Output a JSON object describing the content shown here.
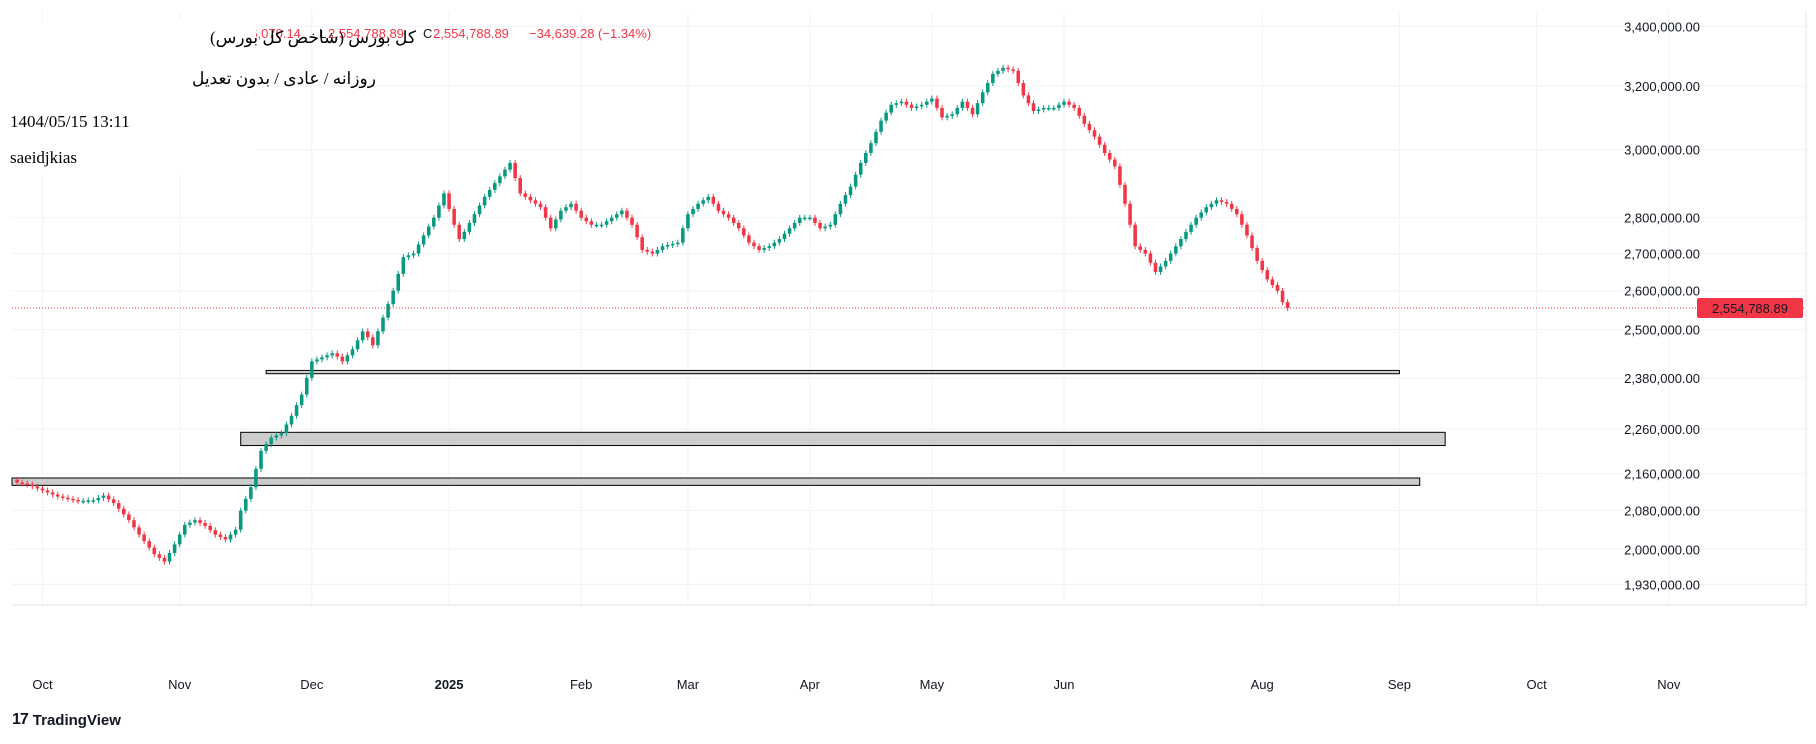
{
  "colors": {
    "up": "#089981",
    "down": "#F23645",
    "grid": "#F0F3FA",
    "zone_fill": "#CCCCCC",
    "zone_stroke": "#000000",
    "price_label": "#F23645"
  },
  "header": {
    "title": "کل بورس (شاخص کل بورس)",
    "timeframe": "روزانه / عادی / بدون تعدیل",
    "datetime": "1404/05/15 13:11",
    "author": "saeidjkias",
    "ohlc": {
      "h_label": "H",
      "high": "2,586,070.14",
      "l_label": "L",
      "low": "2,554,788.89",
      "c_label": "C",
      "close": "2,554,788.89",
      "change": "−34,639.28 (−1.34%)"
    }
  },
  "brand": {
    "logo": "17",
    "name": "TradingView"
  },
  "chart_data": {
    "type": "candlestick",
    "y_scale": "log",
    "ylim": [
      1890000,
      3450000
    ],
    "y_ticks": [
      3400000,
      3200000,
      3000000,
      2800000,
      2700000,
      2600000,
      2500000,
      2380000,
      2260000,
      2160000,
      2080000,
      2000000,
      1930000
    ],
    "y_tick_labels": [
      "3,400,000.00",
      "3,200,000.00",
      "3,000,000.00",
      "2,800,000.00",
      "2,700,000.00",
      "2,600,000.00",
      "2,500,000.00",
      "2,380,000.00",
      "2,260,000.00",
      "2,160,000.00",
      "2,080,000.00",
      "2,000,000.00",
      "1,930,000.00"
    ],
    "x_start_index": -3,
    "x_end_index": 350,
    "x_ticks": [
      {
        "index": 3,
        "label": "Oct",
        "bold": false
      },
      {
        "index": 30,
        "label": "Nov",
        "bold": false
      },
      {
        "index": 56,
        "label": "Dec",
        "bold": false
      },
      {
        "index": 83,
        "label": "2025",
        "bold": true
      },
      {
        "index": 109,
        "label": "Feb",
        "bold": false
      },
      {
        "index": 130,
        "label": "Mar",
        "bold": false
      },
      {
        "index": 154,
        "label": "Apr",
        "bold": false
      },
      {
        "index": 178,
        "label": "May",
        "bold": false
      },
      {
        "index": 204,
        "label": "Jun",
        "bold": false
      },
      {
        "index": 243,
        "label": "Aug",
        "bold": false
      },
      {
        "index": 270,
        "label": "Sep",
        "bold": false
      },
      {
        "index": 297,
        "label": "Oct",
        "bold": false
      },
      {
        "index": 323,
        "label": "Nov",
        "bold": false
      }
    ],
    "last_price": 2554788.89,
    "last_price_label": "2,554,788.89",
    "zones": [
      {
        "start_index": 47,
        "end_index": 270,
        "top": 2398000,
        "bottom": 2390000
      },
      {
        "start_index": 42,
        "end_index": 279,
        "top": 2252000,
        "bottom": 2222000
      },
      {
        "start_index": -3,
        "end_index": 274,
        "top": 2150000,
        "bottom": 2134000
      }
    ],
    "anchors": [
      [
        -2,
        2140000
      ],
      [
        0,
        2136000
      ],
      [
        3,
        2123000
      ],
      [
        6,
        2110000
      ],
      [
        10,
        2100000
      ],
      [
        13,
        2102000
      ],
      [
        15,
        2112000
      ],
      [
        17,
        2096000
      ],
      [
        20,
        2060000
      ],
      [
        22,
        2030000
      ],
      [
        25,
        1990000
      ],
      [
        27,
        1975000
      ],
      [
        29,
        2010000
      ],
      [
        31,
        2050000
      ],
      [
        33,
        2060000
      ],
      [
        35,
        2048000
      ],
      [
        37,
        2030000
      ],
      [
        39,
        2020000
      ],
      [
        41,
        2040000
      ],
      [
        42,
        2080000
      ],
      [
        44,
        2130000
      ],
      [
        46,
        2210000
      ],
      [
        48,
        2240000
      ],
      [
        50,
        2250000
      ],
      [
        52,
        2290000
      ],
      [
        54,
        2340000
      ],
      [
        56,
        2420000
      ],
      [
        58,
        2430000
      ],
      [
        60,
        2440000
      ],
      [
        61,
        2432000
      ],
      [
        62,
        2420000
      ],
      [
        64,
        2450000
      ],
      [
        66,
        2495000
      ],
      [
        67,
        2480000
      ],
      [
        68,
        2460000
      ],
      [
        70,
        2530000
      ],
      [
        72,
        2600000
      ],
      [
        74,
        2690000
      ],
      [
        76,
        2700000
      ],
      [
        78,
        2750000
      ],
      [
        80,
        2800000
      ],
      [
        82,
        2870000
      ],
      [
        84,
        2780000
      ],
      [
        85,
        2740000
      ],
      [
        86,
        2760000
      ],
      [
        88,
        2810000
      ],
      [
        90,
        2860000
      ],
      [
        93,
        2920000
      ],
      [
        95,
        2960000
      ],
      [
        97,
        2870000
      ],
      [
        99,
        2850000
      ],
      [
        101,
        2830000
      ],
      [
        103,
        2770000
      ],
      [
        105,
        2820000
      ],
      [
        107,
        2840000
      ],
      [
        109,
        2800000
      ],
      [
        111,
        2780000
      ],
      [
        113,
        2780000
      ],
      [
        115,
        2800000
      ],
      [
        117,
        2820000
      ],
      [
        119,
        2780000
      ],
      [
        121,
        2710000
      ],
      [
        123,
        2700000
      ],
      [
        125,
        2720000
      ],
      [
        128,
        2730000
      ],
      [
        130,
        2810000
      ],
      [
        132,
        2840000
      ],
      [
        134,
        2860000
      ],
      [
        136,
        2820000
      ],
      [
        138,
        2800000
      ],
      [
        140,
        2770000
      ],
      [
        142,
        2730000
      ],
      [
        144,
        2710000
      ],
      [
        146,
        2720000
      ],
      [
        148,
        2740000
      ],
      [
        150,
        2770000
      ],
      [
        152,
        2800000
      ],
      [
        154,
        2800000
      ],
      [
        156,
        2770000
      ],
      [
        158,
        2780000
      ],
      [
        160,
        2840000
      ],
      [
        162,
        2890000
      ],
      [
        164,
        2960000
      ],
      [
        166,
        3020000
      ],
      [
        168,
        3090000
      ],
      [
        170,
        3140000
      ],
      [
        172,
        3150000
      ],
      [
        174,
        3130000
      ],
      [
        176,
        3140000
      ],
      [
        178,
        3160000
      ],
      [
        180,
        3100000
      ],
      [
        182,
        3110000
      ],
      [
        184,
        3150000
      ],
      [
        186,
        3110000
      ],
      [
        188,
        3180000
      ],
      [
        190,
        3240000
      ],
      [
        192,
        3260000
      ],
      [
        194,
        3250000
      ],
      [
        196,
        3170000
      ],
      [
        198,
        3120000
      ],
      [
        200,
        3130000
      ],
      [
        202,
        3130000
      ],
      [
        204,
        3150000
      ],
      [
        206,
        3130000
      ],
      [
        208,
        3080000
      ],
      [
        210,
        3040000
      ],
      [
        212,
        2990000
      ],
      [
        214,
        2950000
      ],
      [
        216,
        2840000
      ],
      [
        218,
        2720000
      ],
      [
        220,
        2700000
      ],
      [
        222,
        2650000
      ],
      [
        224,
        2680000
      ],
      [
        226,
        2720000
      ],
      [
        228,
        2760000
      ],
      [
        230,
        2800000
      ],
      [
        232,
        2830000
      ],
      [
        234,
        2850000
      ],
      [
        236,
        2840000
      ],
      [
        238,
        2810000
      ],
      [
        240,
        2750000
      ],
      [
        242,
        2680000
      ],
      [
        244,
        2630000
      ],
      [
        246,
        2600000
      ],
      [
        247,
        2570000
      ],
      [
        248,
        2554788
      ]
    ]
  }
}
